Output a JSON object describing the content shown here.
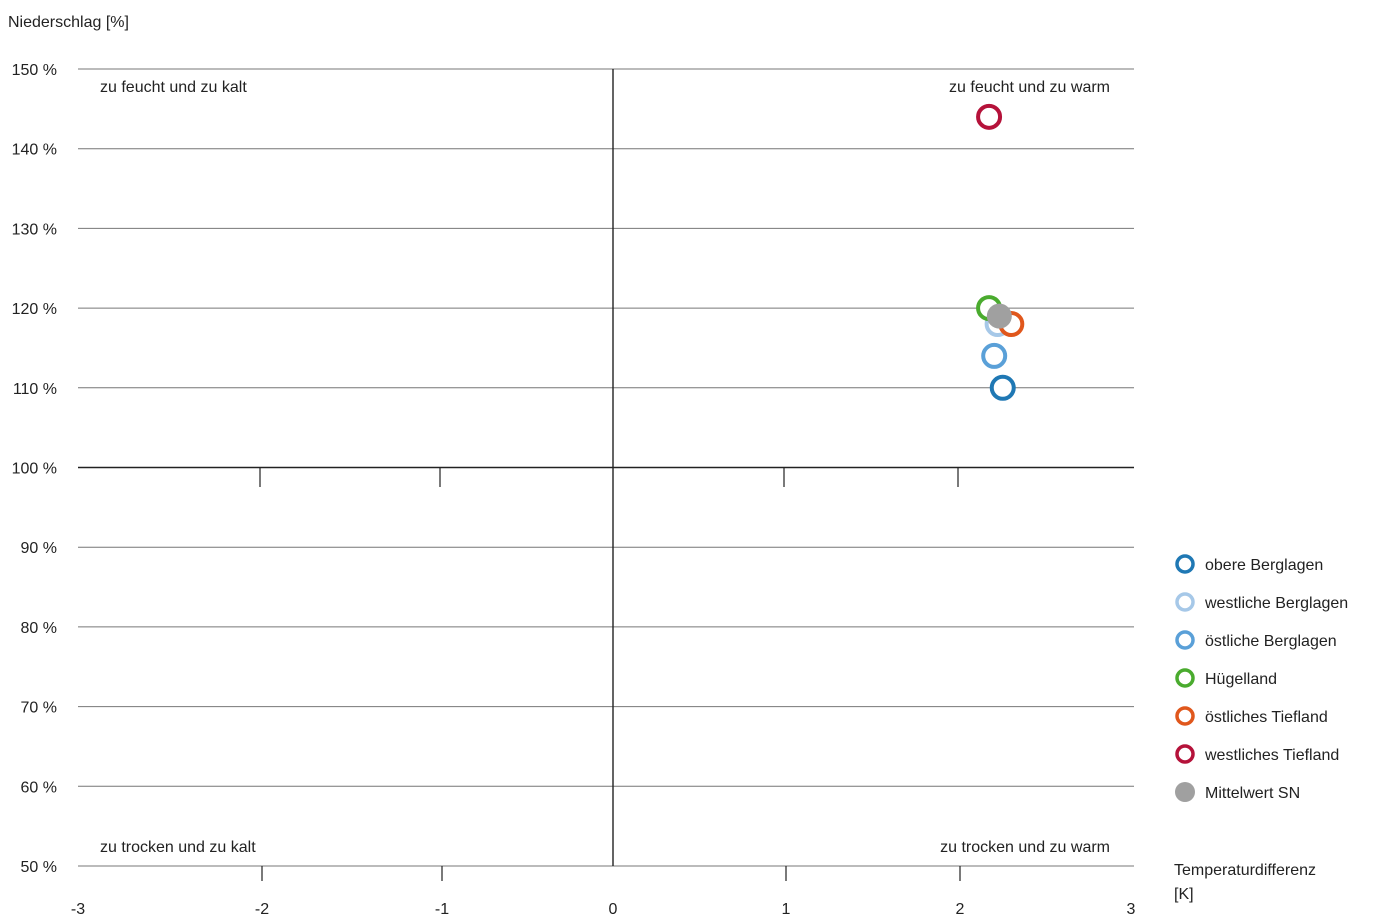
{
  "chart_data": {
    "type": "scatter",
    "ylabel": "Niederschlag [%]",
    "xlabel": "Temperaturdifferenz [K]",
    "xlabel_lines": [
      "Temperaturdifferenz",
      "[K]"
    ],
    "xlim": [
      -3,
      3
    ],
    "ylim": [
      50,
      150
    ],
    "x_ticks": [
      -3,
      -2,
      -1,
      0,
      1,
      2,
      3
    ],
    "x_tick_labels": [
      "-3",
      "-2",
      "-1",
      "0",
      "1",
      "2",
      "3"
    ],
    "y_ticks": [
      50,
      60,
      70,
      80,
      90,
      100,
      110,
      120,
      130,
      140,
      150
    ],
    "y_tick_labels": [
      "50 %",
      "60 %",
      "70 %",
      "80 %",
      "90 %",
      "100 %",
      "110 %",
      "120 %",
      "130 %",
      "140 %",
      "150 %"
    ],
    "reference_lines": {
      "x": 0,
      "y": 100
    },
    "grid": "horizontal",
    "legend_position": "right",
    "quadrant_labels": {
      "top_left": "zu feucht und zu kalt",
      "top_right": "zu feucht und zu warm",
      "bottom_left": "zu trocken und zu kalt",
      "bottom_right": "zu trocken und zu warm"
    },
    "series": [
      {
        "name": "obere Berglagen",
        "x": 2.25,
        "y": 110,
        "color": "#1f78b4",
        "marker": "ring"
      },
      {
        "name": "westliche Berglagen",
        "x": 2.22,
        "y": 118,
        "color": "#a6c8e8",
        "marker": "ring"
      },
      {
        "name": "östliche Berglagen",
        "x": 2.2,
        "y": 114,
        "color": "#5aa0d8",
        "marker": "ring"
      },
      {
        "name": "Hügelland",
        "x": 2.17,
        "y": 120,
        "color": "#4aab2e",
        "marker": "ring"
      },
      {
        "name": "östliches Tiefland",
        "x": 2.3,
        "y": 118,
        "color": "#e0571c",
        "marker": "ring"
      },
      {
        "name": "westliches Tiefland",
        "x": 2.17,
        "y": 144,
        "color": "#b5123a",
        "marker": "ring"
      },
      {
        "name": "Mittelwert SN",
        "x": 2.23,
        "y": 119,
        "color": "#a0a0a0",
        "marker": "filled"
      }
    ]
  }
}
